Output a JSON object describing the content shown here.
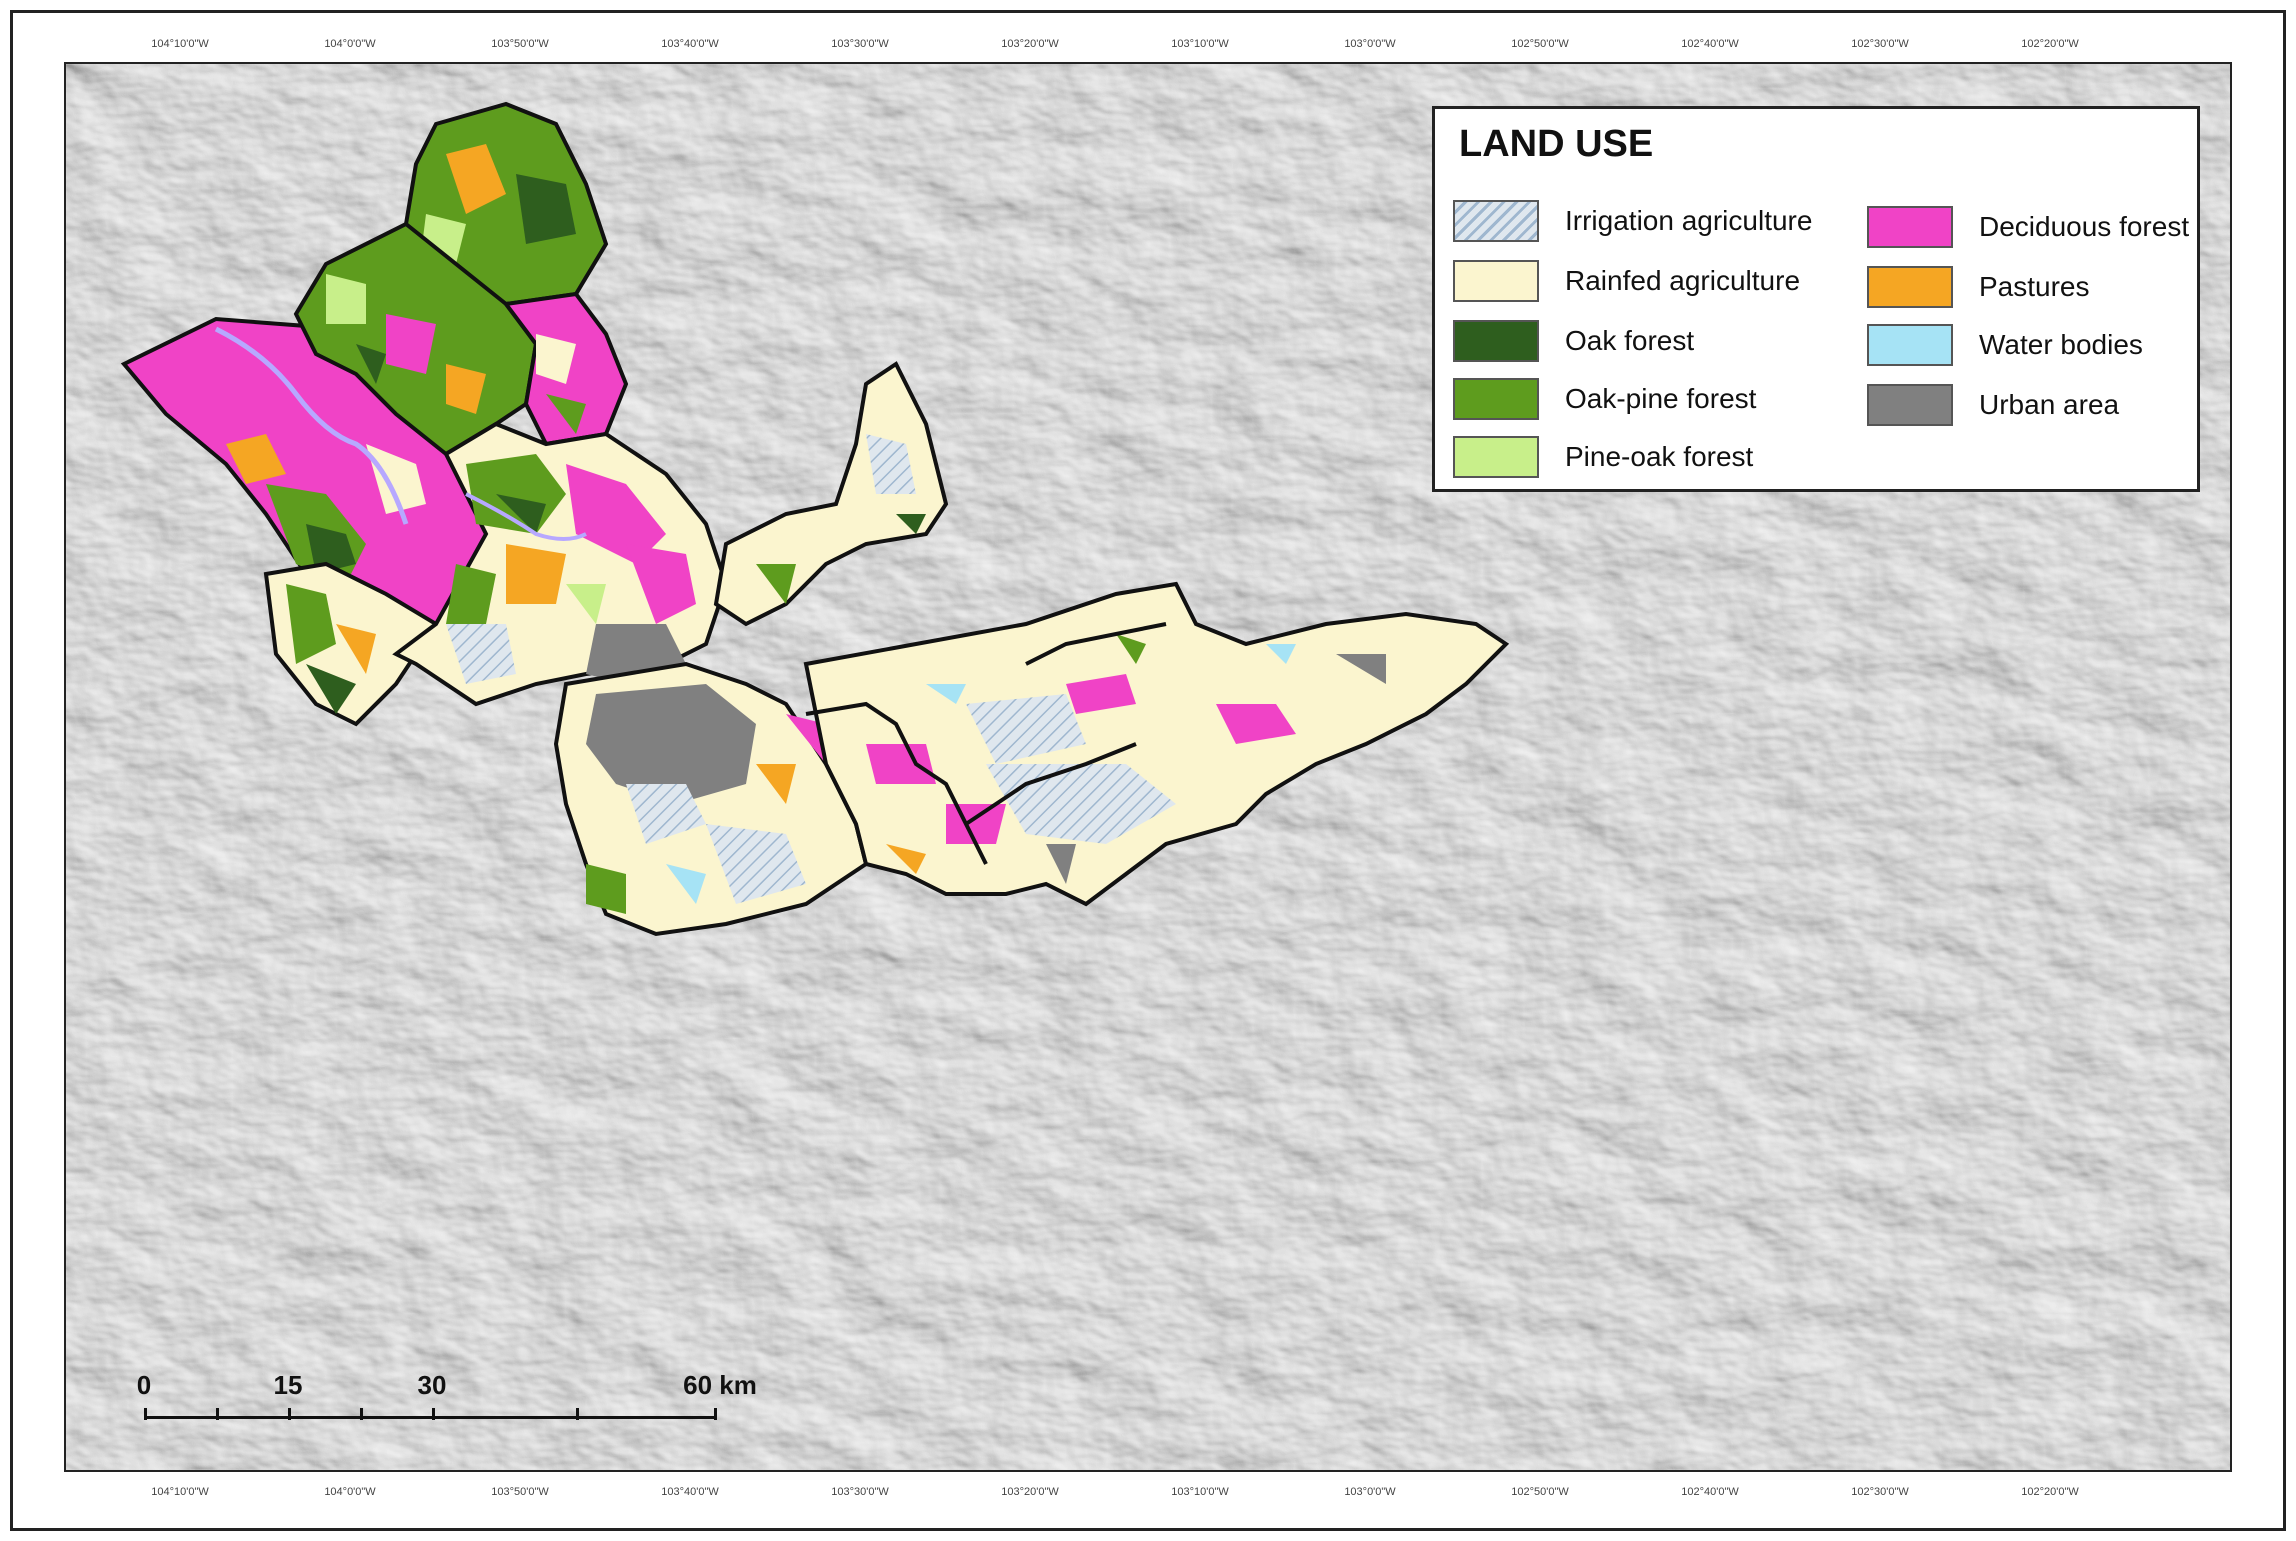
{
  "legend": {
    "title": "LAND USE",
    "items": [
      {
        "label": "Irrigation agriculture",
        "color": "#c9d9e6",
        "pattern": "hatch"
      },
      {
        "label": "Rainfed agriculture",
        "color": "#fbf5cf"
      },
      {
        "label": "Oak forest",
        "color": "#2e5e1e"
      },
      {
        "label": "Oak-pine forest",
        "color": "#5e9c1e"
      },
      {
        "label": "Pine-oak forest",
        "color": "#c8ef8a"
      },
      {
        "label": "Deciduous forest",
        "color": "#f043c6"
      },
      {
        "label": "Pastures",
        "color": "#f5a623"
      },
      {
        "label": "Water bodies",
        "color": "#a6e3f5"
      },
      {
        "label": "Urban area",
        "color": "#808080"
      }
    ]
  },
  "scale_bar": {
    "labels": [
      "0",
      "15",
      "30",
      "60 km"
    ]
  },
  "colors": {
    "hillshade": "#bdbdbd",
    "boundary": "#111111",
    "river": "#b7a8ff"
  }
}
